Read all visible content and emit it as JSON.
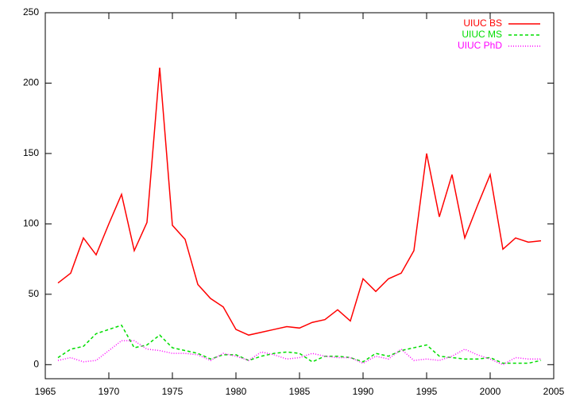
{
  "chart_data": {
    "type": "line",
    "x": [
      1966,
      1967,
      1968,
      1969,
      1970,
      1971,
      1972,
      1973,
      1974,
      1975,
      1976,
      1977,
      1978,
      1979,
      1980,
      1981,
      1982,
      1983,
      1984,
      1985,
      1986,
      1987,
      1988,
      1989,
      1990,
      1991,
      1992,
      1993,
      1994,
      1995,
      1996,
      1997,
      1998,
      1999,
      2000,
      2001,
      2002,
      2003,
      2004
    ],
    "series": [
      {
        "name": "UIUC BS",
        "color": "#ff0000",
        "dash": "",
        "values": [
          58,
          65,
          90,
          78,
          100,
          121,
          81,
          101,
          211,
          99,
          89,
          57,
          47,
          41,
          25,
          21,
          23,
          25,
          27,
          26,
          30,
          32,
          39,
          31,
          61,
          52,
          61,
          65,
          81,
          150,
          105,
          135,
          90,
          113,
          135,
          82,
          90,
          87,
          88
        ]
      },
      {
        "name": "UIUC MS",
        "color": "#00dd00",
        "dash": "4,3",
        "values": [
          5,
          11,
          13,
          22,
          25,
          28,
          12,
          14,
          21,
          12,
          10,
          8,
          4,
          7,
          7,
          3,
          6,
          8,
          9,
          8,
          2,
          6,
          6,
          5,
          2,
          8,
          6,
          10,
          12,
          14,
          6,
          5,
          4,
          4,
          5,
          1,
          1,
          1,
          3
        ]
      },
      {
        "name": "UIUC PhD",
        "color": "#ff00ff",
        "dash": "1,2",
        "values": [
          3,
          5,
          2,
          3,
          10,
          17,
          17,
          11,
          10,
          8,
          8,
          7,
          3,
          8,
          6,
          3,
          9,
          7,
          4,
          5,
          8,
          6,
          5,
          5,
          1,
          6,
          4,
          11,
          3,
          4,
          3,
          6,
          11,
          7,
          4,
          0,
          5,
          4,
          4
        ]
      }
    ],
    "xlim": [
      1965,
      2005
    ],
    "xticks": [
      1965,
      1970,
      1975,
      1980,
      1985,
      1990,
      1995,
      2000,
      2005
    ],
    "ylim": [
      -10,
      250
    ],
    "yticks": [
      0,
      50,
      100,
      150,
      200,
      250
    ],
    "grid": false,
    "legend": "top-right"
  }
}
